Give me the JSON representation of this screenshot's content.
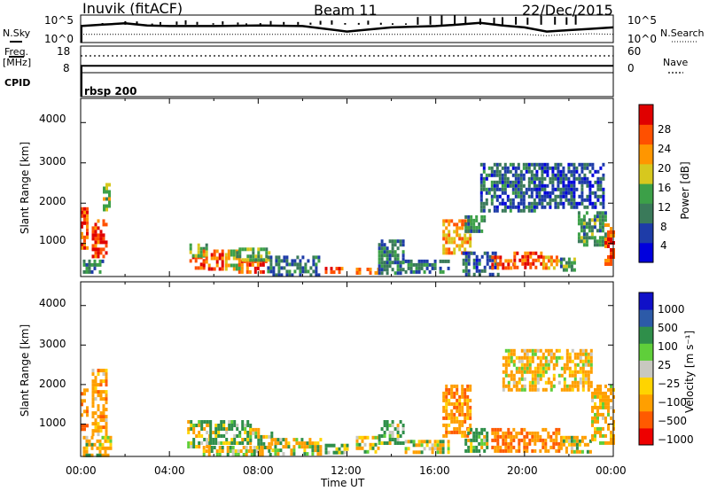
{
  "header": {
    "station": "Inuvik (fitACF)",
    "beam": "Beam 11",
    "date": "22/Dec/2015"
  },
  "top_panel": {
    "left_labels": {
      "nsky": "N.Sky",
      "freq_line1": "Freq.",
      "freq_line2": "[MHz]",
      "cpid": "CPID"
    },
    "right_labels": {
      "nsearch": "N.Search",
      "nave": "Nave"
    },
    "nsky_ticks": [
      "10^5",
      "10^0"
    ],
    "nsearch_ticks": [
      "10^5",
      "10^0"
    ],
    "freq_ticks": [
      "18",
      "8"
    ],
    "nave_ticks": [
      "60",
      "0"
    ],
    "cpid_text": "rbsp 200"
  },
  "x_ticks": [
    "00:00",
    "04:00",
    "08:00",
    "12:00",
    "16:00",
    "20:00",
    "00:00"
  ],
  "x_label": "Time UT",
  "colors": {
    "power": [
      "#0000dd",
      "#1e3ca8",
      "#3a7a5a",
      "#3ca048",
      "#d7c81e",
      "#ff9600",
      "#ff5000",
      "#e00000"
    ],
    "velocity": [
      "#ee0000",
      "#ff5a00",
      "#ff9f00",
      "#ffd400",
      "#c8c8c0",
      "#5fcf3a",
      "#2f8f4a",
      "#2c5aa8",
      "#1010c8"
    ]
  },
  "chart_data": [
    {
      "type": "heatmap",
      "title": "Power",
      "ylabel": "Slant Range [km]",
      "xlabel": "",
      "xlim": [
        0,
        24
      ],
      "ylim": [
        180,
        4600
      ],
      "yticks": [
        "4000",
        "3000",
        "2000",
        "1000"
      ],
      "colorbar": {
        "label": "Power [dB]",
        "ticks": [
          "28",
          "24",
          "20",
          "16",
          "12",
          "8",
          "4"
        ],
        "range": [
          0,
          32
        ]
      },
      "blobs": [
        {
          "t": [
            0.0,
            0.3
          ],
          "r": [
            900,
            1900
          ],
          "v": 26
        },
        {
          "t": [
            0.5,
            1.2
          ],
          "r": [
            700,
            1600
          ],
          "v": 27
        },
        {
          "t": [
            1.0,
            1.3
          ],
          "r": [
            1800,
            2500
          ],
          "v": 16
        },
        {
          "t": [
            0.1,
            1.0
          ],
          "r": [
            250,
            600
          ],
          "v": 10
        },
        {
          "t": [
            4.9,
            5.6
          ],
          "r": [
            400,
            700
          ],
          "v": 26
        },
        {
          "t": [
            4.9,
            5.7
          ],
          "r": [
            700,
            1000
          ],
          "v": 14
        },
        {
          "t": [
            5.5,
            6.4
          ],
          "r": [
            350,
            850
          ],
          "v": 27
        },
        {
          "t": [
            6.5,
            7.2
          ],
          "r": [
            400,
            850
          ],
          "v": 18
        },
        {
          "t": [
            7.1,
            8.3
          ],
          "r": [
            300,
            600
          ],
          "v": 27
        },
        {
          "t": [
            7.0,
            8.5
          ],
          "r": [
            600,
            900
          ],
          "v": 13
        },
        {
          "t": [
            8.4,
            10.7
          ],
          "r": [
            250,
            700
          ],
          "v": 9
        },
        {
          "t": [
            11.0,
            11.9
          ],
          "r": [
            280,
            420
          ],
          "v": 26
        },
        {
          "t": [
            12.4,
            13.4
          ],
          "r": [
            280,
            400
          ],
          "v": 25
        },
        {
          "t": [
            13.4,
            14.5
          ],
          "r": [
            300,
            1100
          ],
          "v": 10
        },
        {
          "t": [
            14.6,
            16.6
          ],
          "r": [
            250,
            600
          ],
          "v": 9
        },
        {
          "t": [
            16.3,
            17.6
          ],
          "r": [
            800,
            1600
          ],
          "v": 22
        },
        {
          "t": [
            17.3,
            18.2
          ],
          "r": [
            1300,
            1700
          ],
          "v": 12
        },
        {
          "t": [
            17.2,
            18.8
          ],
          "r": [
            250,
            800
          ],
          "v": 8
        },
        {
          "t": [
            18.5,
            19.5
          ],
          "r": [
            400,
            700
          ],
          "v": 25
        },
        {
          "t": [
            19.5,
            20.8
          ],
          "r": [
            380,
            800
          ],
          "v": 27
        },
        {
          "t": [
            20.8,
            21.6
          ],
          "r": [
            350,
            700
          ],
          "v": 22
        },
        {
          "t": [
            21.6,
            22.2
          ],
          "r": [
            300,
            650
          ],
          "v": 12
        },
        {
          "t": [
            22.4,
            23.6
          ],
          "r": [
            1000,
            1800
          ],
          "v": 12
        },
        {
          "t": [
            23.6,
            24.0
          ],
          "r": [
            500,
            1500
          ],
          "v": 27
        },
        {
          "t": [
            18.0,
            20.5
          ],
          "r": [
            1800,
            3000
          ],
          "v": 8
        },
        {
          "t": [
            20.5,
            23.5
          ],
          "r": [
            1900,
            3000
          ],
          "v": 7
        }
      ]
    },
    {
      "type": "heatmap",
      "title": "Velocity",
      "ylabel": "Slant Range [km]",
      "xlabel": "Time UT",
      "xlim": [
        0,
        24
      ],
      "ylim": [
        180,
        4600
      ],
      "yticks": [
        "4000",
        "3000",
        "2000",
        "1000"
      ],
      "colorbar": {
        "label": "Velocity [m s⁻¹]",
        "ticks": [
          "1000",
          "500",
          "100",
          "25",
          "−25",
          "−100",
          "−500",
          "−1000"
        ],
        "range": [
          -1250,
          1250
        ]
      },
      "blobs": [
        {
          "t": [
            0.0,
            0.3
          ],
          "r": [
            900,
            1900
          ],
          "v": -450
        },
        {
          "t": [
            0.5,
            1.2
          ],
          "r": [
            700,
            2400
          ],
          "v": -300
        },
        {
          "t": [
            0.1,
            1.3
          ],
          "r": [
            250,
            700
          ],
          "v": -150
        },
        {
          "t": [
            4.8,
            5.8
          ],
          "r": [
            400,
            1100
          ],
          "v": 0
        },
        {
          "t": [
            5.8,
            7.6
          ],
          "r": [
            500,
            1100
          ],
          "v": 180
        },
        {
          "t": [
            7.6,
            8.6
          ],
          "r": [
            350,
            900
          ],
          "v": 60
        },
        {
          "t": [
            5.5,
            8.5
          ],
          "r": [
            250,
            450
          ],
          "v": -80
        },
        {
          "t": [
            8.6,
            10.8
          ],
          "r": [
            250,
            650
          ],
          "v": -60
        },
        {
          "t": [
            11.0,
            12.0
          ],
          "r": [
            300,
            500
          ],
          "v": 200
        },
        {
          "t": [
            12.4,
            13.4
          ],
          "r": [
            280,
            700
          ],
          "v": -90
        },
        {
          "t": [
            13.4,
            14.5
          ],
          "r": [
            500,
            1100
          ],
          "v": 170
        },
        {
          "t": [
            14.6,
            16.6
          ],
          "r": [
            250,
            600
          ],
          "v": -60
        },
        {
          "t": [
            16.3,
            17.6
          ],
          "r": [
            700,
            2000
          ],
          "v": -350
        },
        {
          "t": [
            17.3,
            18.3
          ],
          "r": [
            300,
            900
          ],
          "v": 150
        },
        {
          "t": [
            18.5,
            21.6
          ],
          "r": [
            350,
            900
          ],
          "v": -450
        },
        {
          "t": [
            21.6,
            23.0
          ],
          "r": [
            300,
            700
          ],
          "v": -120
        },
        {
          "t": [
            23.0,
            24.0
          ],
          "r": [
            500,
            2000
          ],
          "v": -200
        },
        {
          "t": [
            19.0,
            23.0
          ],
          "r": [
            1900,
            2900
          ],
          "v": -200
        }
      ]
    },
    {
      "type": "line",
      "title": "N.Sky / N.Search",
      "xlim": [
        0,
        24
      ],
      "series": [
        {
          "name": "N.Sky",
          "x": [
            0,
            1,
            2,
            3,
            4,
            6,
            8,
            10,
            12,
            14,
            16,
            17,
            18,
            19,
            20,
            21,
            22,
            23,
            24
          ],
          "y": [
            0.6,
            0.65,
            0.7,
            0.62,
            0.6,
            0.6,
            0.62,
            0.6,
            0.4,
            0.55,
            0.6,
            0.65,
            0.72,
            0.62,
            0.55,
            0.4,
            0.45,
            0.5,
            0.55
          ]
        },
        {
          "name": "N.Search",
          "x": [
            0,
            4,
            8,
            12,
            16,
            20,
            21,
            22,
            23,
            24
          ],
          "y": [
            0.3,
            0.3,
            0.3,
            0.3,
            0.3,
            0.3,
            0.25,
            0.3,
            0.32,
            0.3
          ]
        }
      ]
    },
    {
      "type": "line",
      "title": "Freq. / Nave",
      "xlim": [
        0,
        24
      ],
      "series": [
        {
          "name": "Freq. [MHz]",
          "x": [
            0,
            24
          ],
          "y": [
            10.6,
            10.6
          ]
        },
        {
          "name": "Nave",
          "x": [
            0,
            24
          ],
          "y": [
            38,
            38
          ]
        }
      ]
    }
  ]
}
